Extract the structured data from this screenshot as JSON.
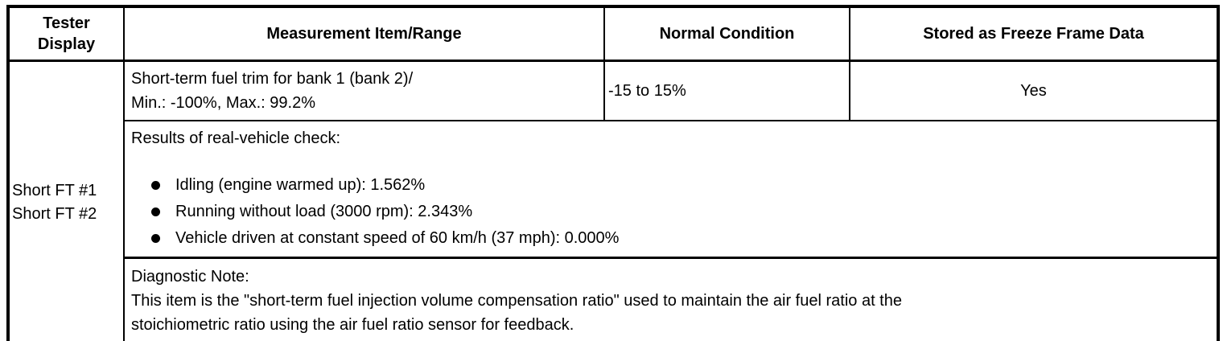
{
  "document": {
    "headers": [
      "Tester Display",
      "Measurement Item/Range",
      "Normal Condition",
      "Stored as Freeze Frame Data"
    ],
    "tester_display_lines": [
      "Short FT #1",
      "Short FT #2"
    ],
    "measurement": {
      "line1": "Short-term fuel trim for bank 1 (bank 2)/",
      "line2": "Min.: -100%, Max.: 99.2%"
    },
    "normal_condition": "-15 to 15%",
    "freeze_frame": "Yes",
    "results": {
      "title": "Results of real-vehicle check:",
      "bullets": [
        "Idling (engine warmed up): 1.562%",
        "Running without load (3000 rpm): 2.343%",
        "Vehicle driven at constant speed of 60 km/h (37 mph): 0.000%"
      ]
    },
    "diagnostic_note": {
      "title": "Diagnostic Note:",
      "line1": "This item is the \"short-term fuel injection volume compensation ratio\" used to maintain the air fuel ratio at the",
      "line2": "stoichiometric ratio using the air fuel ratio sensor for feedback."
    },
    "colors": {
      "border": "#000000",
      "text": "#000000",
      "background": "#ffffff"
    }
  }
}
